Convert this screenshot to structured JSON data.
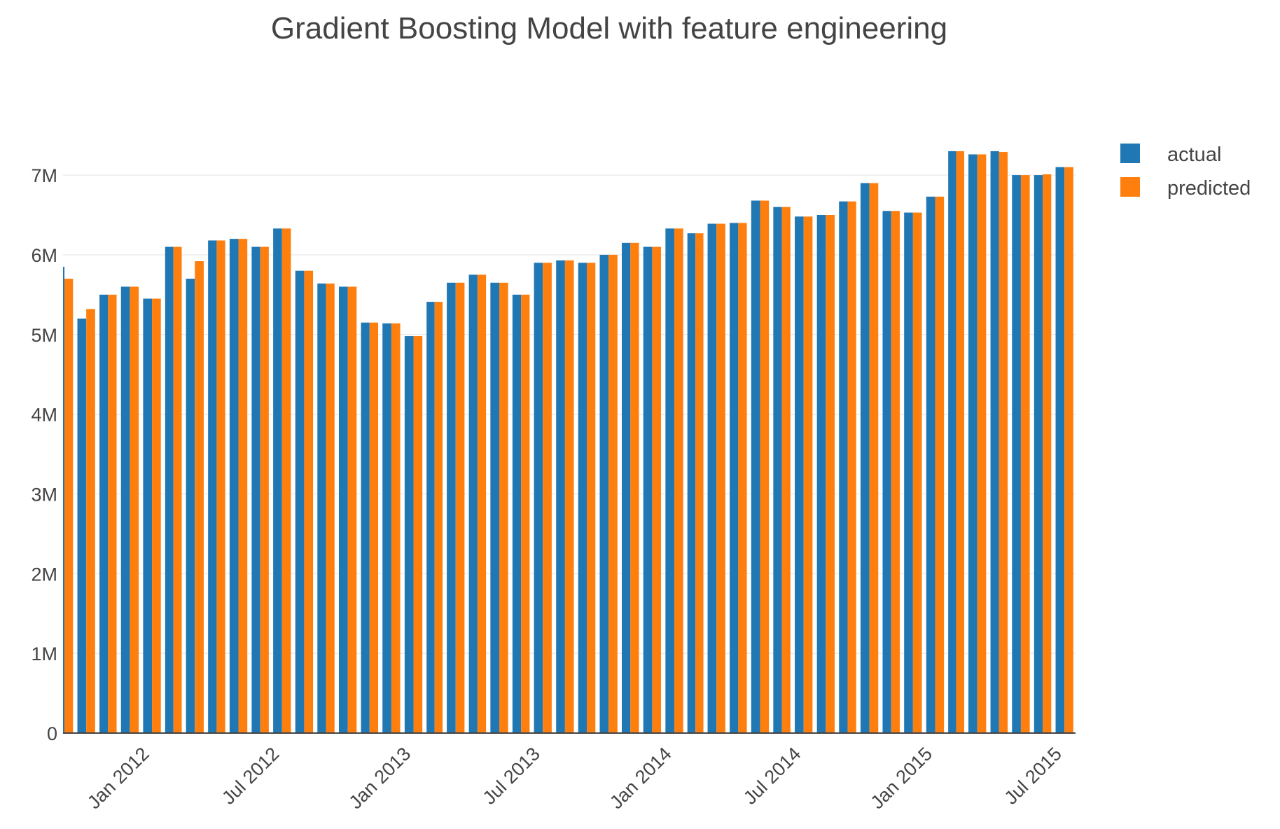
{
  "chart_data": {
    "type": "bar",
    "title": "Gradient Boosting Model with feature engineering",
    "xlabel": "",
    "ylabel": "",
    "x_range": [
      "2011-09-14",
      "2015-08-01"
    ],
    "ylim": [
      0,
      7800000
    ],
    "y_ticks": [
      {
        "value": 0,
        "label": "0"
      },
      {
        "value": 1000000,
        "label": "1M"
      },
      {
        "value": 2000000,
        "label": "2M"
      },
      {
        "value": 3000000,
        "label": "3M"
      },
      {
        "value": 4000000,
        "label": "4M"
      },
      {
        "value": 5000000,
        "label": "5M"
      },
      {
        "value": 6000000,
        "label": "6M"
      },
      {
        "value": 7000000,
        "label": "7M"
      }
    ],
    "x_ticks": [
      {
        "date": "2012-01-01",
        "label": "Jan 2012"
      },
      {
        "date": "2012-07-01",
        "label": "Jul 2012"
      },
      {
        "date": "2013-01-01",
        "label": "Jan 2013"
      },
      {
        "date": "2013-07-01",
        "label": "Jul 2013"
      },
      {
        "date": "2014-01-01",
        "label": "Jan 2014"
      },
      {
        "date": "2014-07-01",
        "label": "Jul 2014"
      },
      {
        "date": "2015-01-01",
        "label": "Jan 2015"
      },
      {
        "date": "2015-07-01",
        "label": "Jul 2015"
      }
    ],
    "grid": true,
    "legend_position": "top-right",
    "categories": [
      "2011-09",
      "2011-10",
      "2011-11",
      "2011-12",
      "2012-01",
      "2012-02",
      "2012-03",
      "2012-04",
      "2012-05",
      "2012-06",
      "2012-07",
      "2012-08",
      "2012-09",
      "2012-10",
      "2012-11",
      "2012-12",
      "2013-01",
      "2013-02",
      "2013-03",
      "2013-04",
      "2013-05",
      "2013-06",
      "2013-07",
      "2013-08",
      "2013-09",
      "2013-10",
      "2013-11",
      "2013-12",
      "2014-01",
      "2014-02",
      "2014-03",
      "2014-04",
      "2014-05",
      "2014-06",
      "2014-07",
      "2014-08",
      "2014-09",
      "2014-10",
      "2014-11",
      "2014-12",
      "2015-01",
      "2015-02",
      "2015-03",
      "2015-04",
      "2015-05",
      "2015-06",
      "2015-07"
    ],
    "series": [
      {
        "name": "actual",
        "color": "#1f77b4",
        "values": [
          5850000,
          5200000,
          5500000,
          5600000,
          5450000,
          6100000,
          5700000,
          6180000,
          6200000,
          6100000,
          6330000,
          5800000,
          5640000,
          5600000,
          5150000,
          5140000,
          4980000,
          5410000,
          5650000,
          5750000,
          5650000,
          5500000,
          5900000,
          5930000,
          5900000,
          6000000,
          6150000,
          6100000,
          6330000,
          6270000,
          6390000,
          6400000,
          6680000,
          6600000,
          6480000,
          6500000,
          6670000,
          6900000,
          6550000,
          6530000,
          6730000,
          7300000,
          7260000,
          7300000,
          7000000,
          7000000,
          7100000
        ]
      },
      {
        "name": "predicted",
        "color": "#ff7f0e",
        "values": [
          5700000,
          5320000,
          5500000,
          5600000,
          5450000,
          6100000,
          5920000,
          6180000,
          6200000,
          6100000,
          6330000,
          5800000,
          5640000,
          5600000,
          5150000,
          5140000,
          4980000,
          5410000,
          5650000,
          5750000,
          5650000,
          5500000,
          5900000,
          5930000,
          5900000,
          6000000,
          6150000,
          6100000,
          6330000,
          6270000,
          6390000,
          6400000,
          6680000,
          6600000,
          6480000,
          6500000,
          6670000,
          6900000,
          6550000,
          6530000,
          6730000,
          7300000,
          7260000,
          7290000,
          7000000,
          7010000,
          7100000
        ]
      }
    ]
  }
}
